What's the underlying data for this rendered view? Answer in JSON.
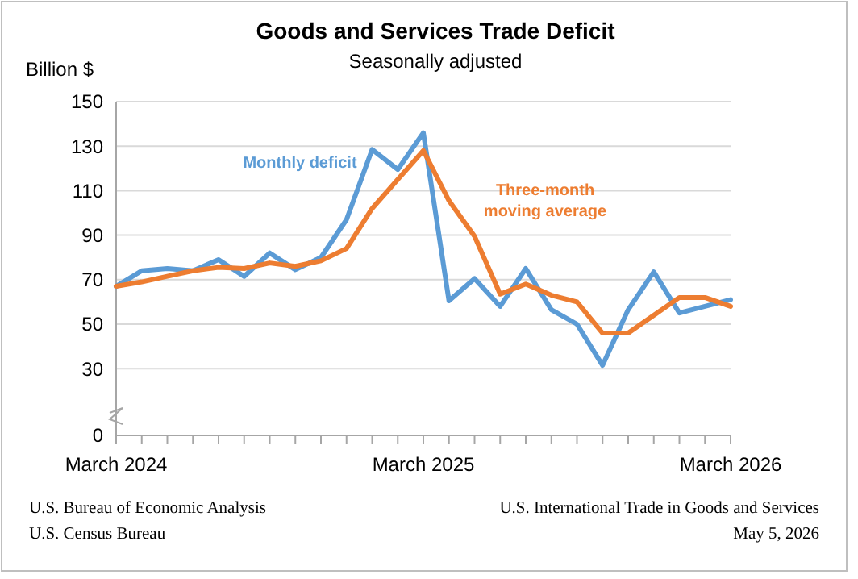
{
  "chart_data": {
    "type": "line",
    "title": "Goods and Services Trade Deficit",
    "subtitle": "Seasonally adjusted",
    "ylabel": "Billion $",
    "categories": [
      "March 2024",
      null,
      null,
      null,
      null,
      null,
      null,
      null,
      null,
      null,
      null,
      null,
      "March 2025",
      null,
      null,
      null,
      null,
      null,
      null,
      null,
      null,
      null,
      null,
      null,
      "March 2026"
    ],
    "series": [
      {
        "name": "Monthly deficit",
        "color": "#5b9bd5",
        "values": [
          67,
          74,
          75,
          74,
          79,
          71.5,
          82,
          74.5,
          80,
          97,
          128.5,
          119.5,
          136,
          60.5,
          70.5,
          58,
          75,
          56.5,
          50,
          31.5,
          56.5,
          73.5,
          55,
          58,
          61
        ]
      },
      {
        "name": "Three-month moving average",
        "color": "#ed7d31",
        "values": [
          67,
          69,
          71.5,
          74,
          75.5,
          75,
          77.5,
          76,
          78.5,
          84,
          102,
          115,
          128,
          105.5,
          89.5,
          63.5,
          68,
          63,
          60,
          46,
          46,
          54,
          62,
          62,
          58
        ]
      }
    ],
    "ylim": [
      0,
      150
    ],
    "yticks": [
      0,
      30,
      50,
      70,
      90,
      110,
      130,
      150
    ],
    "grid": "y",
    "marker": "none",
    "line_style": "solid",
    "annotations": [
      "U.S. Bureau of Economic Analysis",
      "U.S. Census Bureau",
      "U.S. International Trade in Goods and Services",
      "May 5, 2026"
    ]
  }
}
